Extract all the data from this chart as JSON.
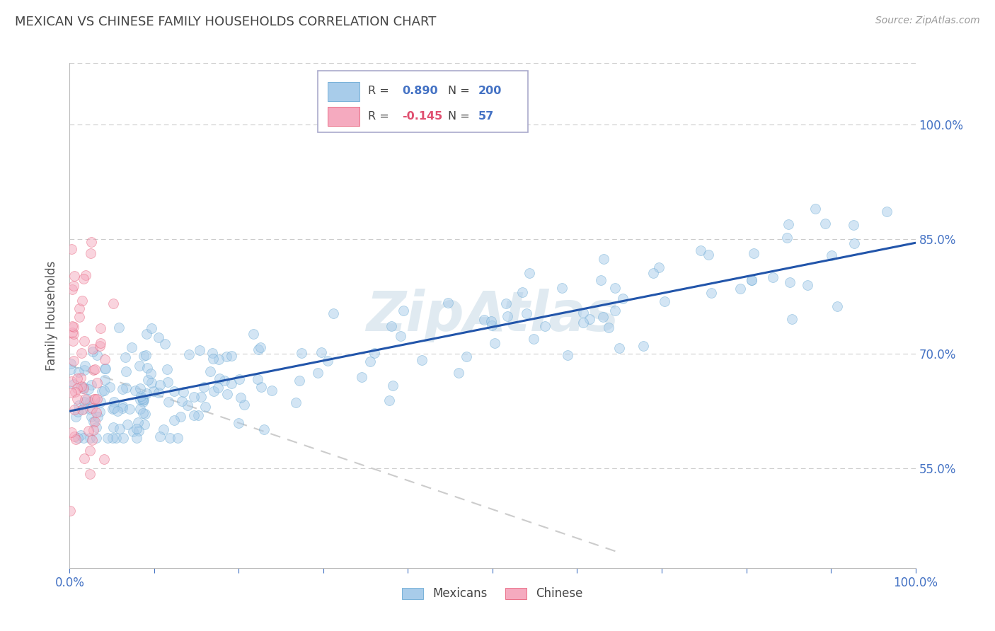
{
  "title": "MEXICAN VS CHINESE FAMILY HOUSEHOLDS CORRELATION CHART",
  "source": "Source: ZipAtlas.com",
  "ylabel": "Family Households",
  "xlim": [
    0.0,
    1.0
  ],
  "ylim": [
    0.42,
    1.08
  ],
  "yticks": [
    0.55,
    0.7,
    0.85,
    1.0
  ],
  "ytick_labels": [
    "55.0%",
    "70.0%",
    "85.0%",
    "100.0%"
  ],
  "xticks": [
    0.0,
    0.1,
    0.2,
    0.3,
    0.4,
    0.5,
    0.6,
    0.7,
    0.8,
    0.9,
    1.0
  ],
  "xtick_labels": [
    "0.0%",
    "",
    "",
    "",
    "",
    "",
    "",
    "",
    "",
    "",
    "100.0%"
  ],
  "mexican_color": "#a8ccea",
  "chinese_color": "#f5aabf",
  "mexican_edge": "#6aaad4",
  "chinese_edge": "#e8607a",
  "trend_mexican_color": "#2255aa",
  "trend_chinese_color": "#cccccc",
  "R_mexican": 0.89,
  "N_mexican": 200,
  "R_chinese": -0.145,
  "N_chinese": 57,
  "watermark": "ZipAtlas",
  "watermark_color": "#ccdde8",
  "background_color": "#ffffff",
  "grid_color": "#cccccc",
  "title_color": "#444444",
  "axis_label_color": "#555555",
  "tick_color": "#4472c4",
  "source_color": "#999999",
  "legend_r_color_mexican": "#4472c4",
  "legend_r_color_chinese": "#e05070",
  "legend_n_color": "#4472c4",
  "marker_size": 100,
  "marker_alpha": 0.5,
  "mex_trend_start_y": 0.625,
  "mex_trend_end_y": 0.845,
  "chi_trend_start_y": 0.685,
  "chi_trend_end_y": 0.44
}
